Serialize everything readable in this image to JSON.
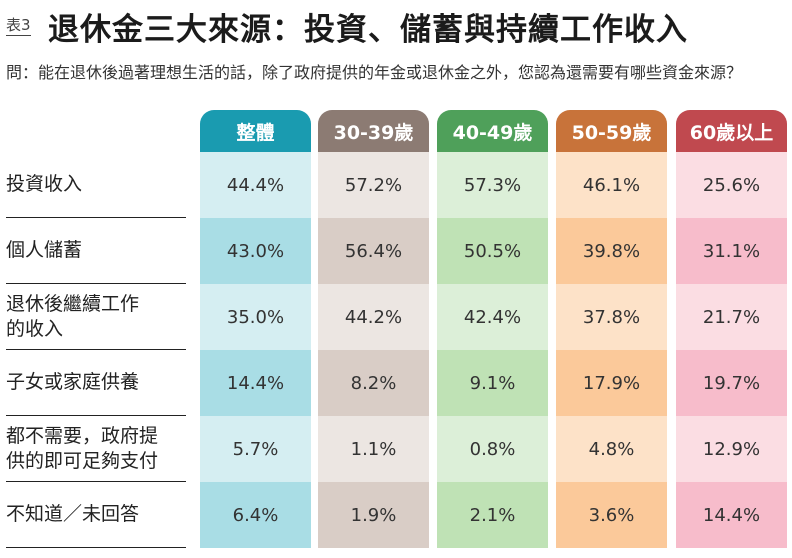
{
  "header": {
    "label": "表3",
    "title": "退休金三大來源：投資、儲蓄與持續工作收入",
    "question": "問：能在退休後過著理想生活的話，除了政府提供的年金或退休金之外，您認為還需要有哪些資金來源？"
  },
  "table": {
    "columns": [
      "整體",
      "30-39歲",
      "40-49歲",
      "50-59歲",
      "60歲以上"
    ],
    "rows": [
      {
        "label": [
          "投資收入"
        ],
        "values": [
          "44.4%",
          "57.2%",
          "57.3%",
          "46.1%",
          "25.6%"
        ]
      },
      {
        "label": [
          "個人儲蓄"
        ],
        "values": [
          "43.0%",
          "56.4%",
          "50.5%",
          "39.8%",
          "31.1%"
        ]
      },
      {
        "label": [
          "退休後繼續工作",
          "的收入"
        ],
        "values": [
          "35.0%",
          "44.2%",
          "42.4%",
          "37.8%",
          "21.7%"
        ]
      },
      {
        "label": [
          "子女或家庭供養"
        ],
        "values": [
          "14.4%",
          "8.2%",
          "9.1%",
          "17.9%",
          "19.7%"
        ]
      },
      {
        "label": [
          "都不需要，政府提",
          "供的即可足夠支付"
        ],
        "values": [
          "5.7%",
          "1.1%",
          "0.8%",
          "4.8%",
          "12.9%"
        ]
      },
      {
        "label": [
          "不知道／未回答"
        ],
        "values": [
          "6.4%",
          "1.9%",
          "2.1%",
          "3.6%",
          "14.4%"
        ]
      }
    ]
  }
}
